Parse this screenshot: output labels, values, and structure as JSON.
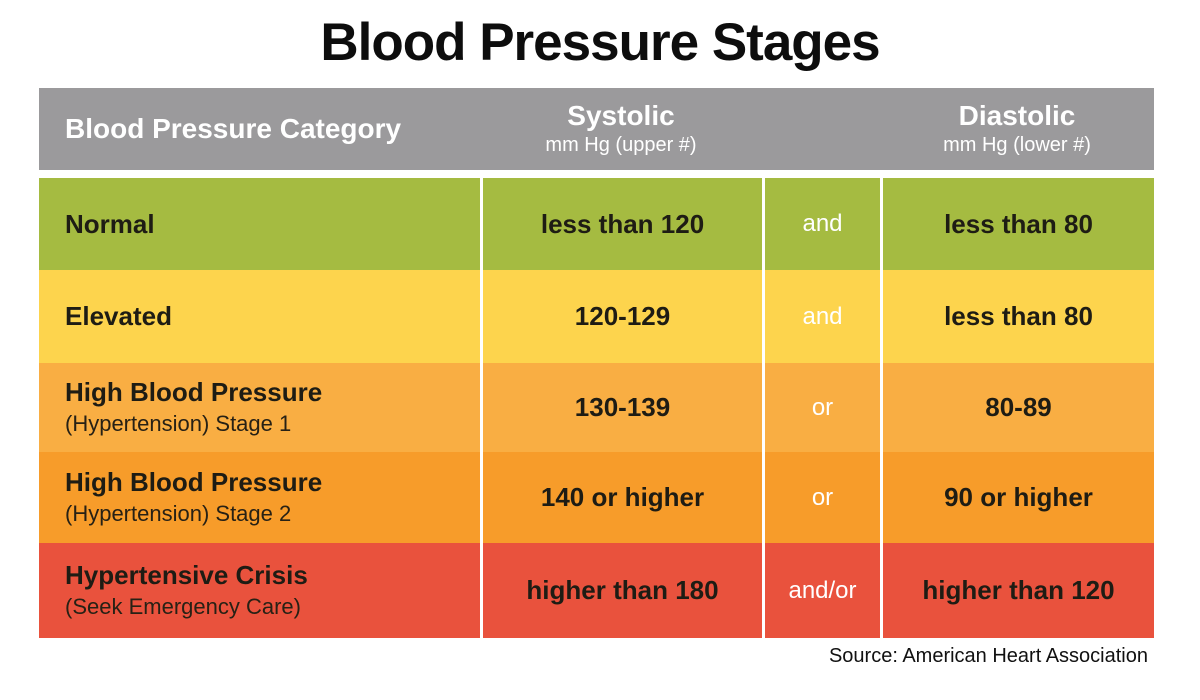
{
  "title": "Blood Pressure Stages",
  "source": "Source: American Heart Association",
  "table": {
    "header": {
      "category": "Blood Pressure Category",
      "systolic_label": "Systolic",
      "systolic_sub": "mm Hg (upper #)",
      "diastolic_label": "Diastolic",
      "diastolic_sub": "mm Hg (lower #)"
    },
    "rows": [
      {
        "category": "Normal",
        "subtitle": "",
        "systolic": "less than 120",
        "connector": "and",
        "diastolic": "less than 80",
        "bg": "#a5bb41"
      },
      {
        "category": "Elevated",
        "subtitle": "",
        "systolic": "120-129",
        "connector": "and",
        "diastolic": "less than 80",
        "bg": "#fdd44d"
      },
      {
        "category": "High Blood Pressure",
        "subtitle": "(Hypertension) Stage 1",
        "systolic": "130-139",
        "connector": "or",
        "diastolic": "80-89",
        "bg": "#f9ae43"
      },
      {
        "category": "High Blood Pressure",
        "subtitle": "(Hypertension) Stage 2",
        "systolic": "140 or higher",
        "connector": "or",
        "diastolic": "90 or higher",
        "bg": "#f79c2a"
      },
      {
        "category": "Hypertensive Crisis",
        "subtitle": "(Seek Emergency Care)",
        "systolic": "higher than 180",
        "connector": "and/or",
        "diastolic": "higher than 120",
        "bg": "#e9523d"
      }
    ]
  },
  "colors": {
    "header_bg": "#9b9a9c",
    "header_text": "#ffffff",
    "row_normal": "#a5bb41",
    "row_elevated": "#fdd44d",
    "row_stage1": "#f9ae43",
    "row_stage2": "#f79c2a",
    "row_crisis": "#e9523d",
    "divider": "#ffffff",
    "title_text": "#0d0d0d",
    "body_text": "#1e1c14"
  },
  "chart_data": {
    "type": "table",
    "title": "Blood Pressure Stages",
    "columns": [
      "Blood Pressure Category",
      "Systolic mm Hg (upper #)",
      "connector",
      "Diastolic mm Hg (lower #)"
    ],
    "rows": [
      [
        "Normal",
        "less than 120",
        "and",
        "less than 80"
      ],
      [
        "Elevated",
        "120-129",
        "and",
        "less than 80"
      ],
      [
        "High Blood Pressure (Hypertension) Stage 1",
        "130-139",
        "or",
        "80-89"
      ],
      [
        "High Blood Pressure (Hypertension) Stage 2",
        "140 or higher",
        "or",
        "90 or higher"
      ],
      [
        "Hypertensive Crisis (Seek Emergency Care)",
        "higher than 180",
        "and/or",
        "higher than 120"
      ]
    ],
    "row_colors": [
      "#a5bb41",
      "#fdd44d",
      "#f9ae43",
      "#f79c2a",
      "#e9523d"
    ],
    "source": "Source: American Heart Association",
    "legend_position": "none",
    "grid": false
  }
}
